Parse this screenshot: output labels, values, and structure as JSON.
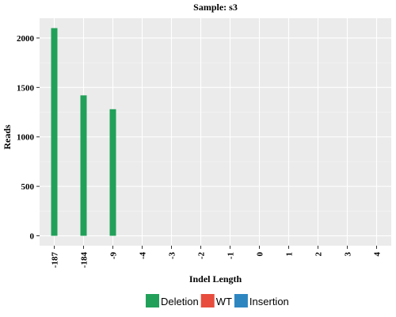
{
  "chart_data": {
    "type": "bar",
    "title": "Sample: s3",
    "xlabel": "Indel Length",
    "ylabel": "Reads",
    "categories": [
      "-187",
      "-184",
      "-9",
      "-4",
      "-3",
      "-2",
      "-1",
      "0",
      "1",
      "2",
      "3",
      "4"
    ],
    "series": [
      {
        "name": "Deletion",
        "color": "#21a059",
        "values": [
          2100,
          1420,
          1280,
          0,
          0,
          0,
          0,
          0,
          0,
          0,
          0,
          0
        ]
      },
      {
        "name": "WT",
        "color": "#e74c3c",
        "values": [
          0,
          0,
          0,
          0,
          0,
          0,
          0,
          0,
          0,
          0,
          0,
          0
        ]
      },
      {
        "name": "Insertion",
        "color": "#2e86c1",
        "values": [
          0,
          0,
          0,
          0,
          0,
          0,
          0,
          0,
          0,
          0,
          0,
          0
        ]
      }
    ],
    "yticks": [
      0,
      500,
      1000,
      1500,
      2000
    ],
    "ylim": [
      -100,
      2200
    ],
    "grid": true,
    "legend_position": "bottom",
    "panel_background": "#ebebeb"
  }
}
